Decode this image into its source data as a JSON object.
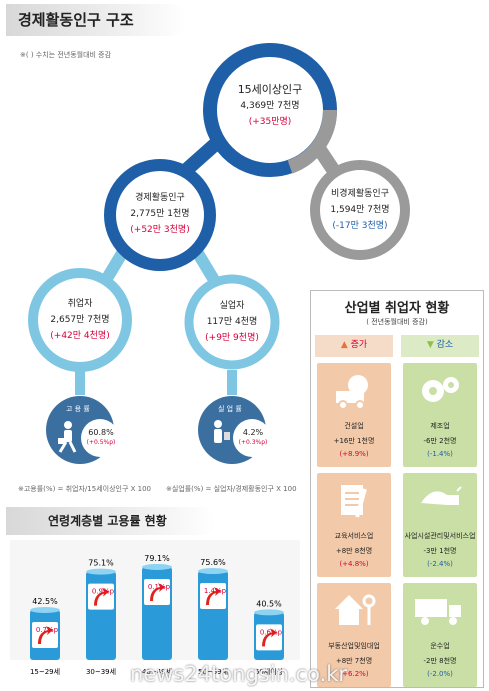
{
  "title": "경제활동인구 구조",
  "note_top": "※( ) 수치는 전년동월대비 증감",
  "circles": {
    "pop15": {
      "name": "15세이상인구",
      "value": "4,369만 7천명",
      "change": "(+35만명)"
    },
    "active": {
      "name": "경제활동인구",
      "value": "2,775만 1천명",
      "change": "(+52만 3천명)"
    },
    "inactive": {
      "name": "비경제활동인구",
      "value": "1,594만 7천명",
      "change": "(-17만 3천명)"
    },
    "employed": {
      "name": "취업자",
      "value": "2,657만 7천명",
      "change": "(+42만 4천명)"
    },
    "unemployed": {
      "name": "실업자",
      "value": "117만 4천명",
      "change": "(+9만 9천명)"
    }
  },
  "rates": {
    "employment": {
      "label": "고 용 률",
      "value": "60.8%",
      "change": "(+0.5%p)"
    },
    "unemployment": {
      "label": "실 업 률",
      "value": "4.2%",
      "change": "(+0.3%p)"
    }
  },
  "notes": {
    "employment": "※고용률(%) = 취업자/15세이상인구 X 100",
    "unemployment": "※실업률(%) = 실업자/경제활동인구 X 100"
  },
  "industry": {
    "title": "산업별 취업자 현황",
    "subtitle": "( 전년동월대비 증감)",
    "increase_label": "증가",
    "decrease_label": "감소",
    "increase": [
      {
        "name": "건설업",
        "value": "+16만 1천명",
        "change": "(+8.9%)",
        "icon": "truck-icon"
      },
      {
        "name": "교육서비스업",
        "value": "+8만 8천명",
        "change": "(+4.8%)",
        "icon": "document-pencil-icon"
      },
      {
        "name": "부동산업및임대업",
        "value": "+8만 7천명",
        "change": "(+6.2%)",
        "icon": "house-key-icon"
      }
    ],
    "decrease": [
      {
        "name": "제조업",
        "value": "-6만 2천명",
        "change": "(-1.4%)",
        "icon": "gears-icon"
      },
      {
        "name": "사업시설관리및서비스업",
        "value": "-3만 1천명",
        "change": "(-2.4%)",
        "icon": "flashlight-icon"
      },
      {
        "name": "운수업",
        "value": "-2만 8천명",
        "change": "(-2.0%)",
        "icon": "lorry-icon"
      }
    ]
  },
  "watermark": "news24tongsin.co.kr",
  "colors": {
    "dark_blue": "#1e5fa8",
    "light_blue": "#7fc6e2",
    "gray": "#9a9a9a",
    "red": "#d6003a"
  },
  "chart_data": {
    "type": "bar",
    "title": "연령계층별 고용률 현황",
    "categories": [
      "15~29세",
      "30~39세",
      "40~49세",
      "50~59세",
      "60세이상"
    ],
    "values": [
      42.5,
      75.1,
      79.1,
      75.6,
      40.5
    ],
    "value_labels": [
      "42.5%",
      "75.1%",
      "79.1%",
      "75.6%",
      "40.5%"
    ],
    "change_labels": [
      "0.7%p",
      "0.9%p",
      "0.1%p",
      "1.4%p",
      "0.6%p"
    ],
    "ylim": [
      0,
      85
    ]
  }
}
